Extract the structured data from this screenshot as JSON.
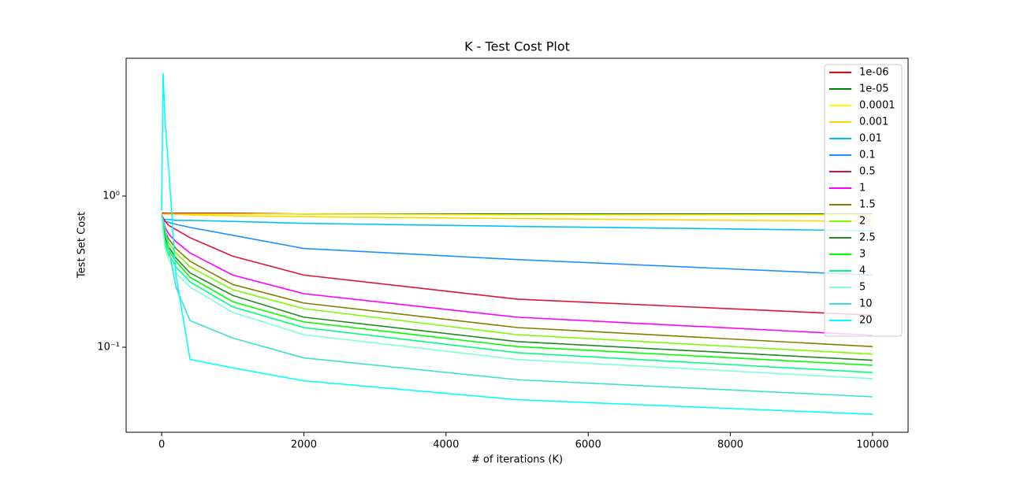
{
  "chart_data": {
    "type": "line",
    "title": "K - Test Cost Plot",
    "x_label": "# of iterations (K)",
    "y_label": "Test Set Cost",
    "yscale": "log",
    "legend": "upper right",
    "xlim": [
      -500,
      10500
    ],
    "ylim": [
      0.0274,
      8.15
    ],
    "xticks": [
      0,
      2000,
      4000,
      6000,
      8000,
      10000
    ],
    "yticks": [
      {
        "value": 0.1,
        "label": "10⁻¹"
      },
      {
        "value": 1,
        "label": "10⁰"
      }
    ],
    "x": [
      0,
      20,
      50,
      100,
      200,
      400,
      1000,
      2000,
      5000,
      10000
    ],
    "series": [
      {
        "name": "1e-06",
        "color": "#ff0000",
        "values": [
          0.77,
          0.77,
          0.77,
          0.77,
          0.77,
          0.77,
          0.77,
          0.76,
          0.76,
          0.76
        ]
      },
      {
        "name": "1e-05",
        "color": "#008000",
        "values": [
          0.76,
          0.76,
          0.76,
          0.76,
          0.76,
          0.76,
          0.76,
          0.76,
          0.76,
          0.76
        ]
      },
      {
        "name": "0.0001",
        "color": "#ffff00",
        "values": [
          0.76,
          0.76,
          0.76,
          0.76,
          0.76,
          0.76,
          0.76,
          0.76,
          0.75,
          0.75
        ]
      },
      {
        "name": "0.001",
        "color": "#ffd700",
        "values": [
          0.76,
          0.76,
          0.76,
          0.76,
          0.76,
          0.75,
          0.74,
          0.73,
          0.71,
          0.68
        ]
      },
      {
        "name": "0.01",
        "color": "#00bfff",
        "values": [
          0.72,
          0.71,
          0.7,
          0.7,
          0.69,
          0.69,
          0.68,
          0.66,
          0.63,
          0.59
        ]
      },
      {
        "name": "0.1",
        "color": "#1e90ff",
        "values": [
          0.72,
          0.7,
          0.68,
          0.67,
          0.65,
          0.62,
          0.55,
          0.45,
          0.38,
          0.3
        ]
      },
      {
        "name": "0.5",
        "color": "#dc143c",
        "values": [
          0.75,
          0.72,
          0.68,
          0.64,
          0.6,
          0.53,
          0.4,
          0.3,
          0.208,
          0.163
        ]
      },
      {
        "name": "1",
        "color": "#ff00ff",
        "values": [
          0.75,
          0.7,
          0.62,
          0.56,
          0.5,
          0.42,
          0.3,
          0.226,
          0.158,
          0.12
        ]
      },
      {
        "name": "1.5",
        "color": "#808000",
        "values": [
          0.75,
          0.68,
          0.58,
          0.52,
          0.45,
          0.37,
          0.26,
          0.196,
          0.135,
          0.101
        ]
      },
      {
        "name": "2",
        "color": "#7cfc00",
        "values": [
          0.75,
          0.66,
          0.55,
          0.49,
          0.42,
          0.34,
          0.24,
          0.18,
          0.121,
          0.09
        ]
      },
      {
        "name": "2.5",
        "color": "#228b22",
        "values": [
          0.75,
          0.64,
          0.53,
          0.46,
          0.39,
          0.31,
          0.22,
          0.158,
          0.109,
          0.082
        ]
      },
      {
        "name": "3",
        "color": "#00ff00",
        "values": [
          0.75,
          0.62,
          0.51,
          0.44,
          0.37,
          0.29,
          0.2,
          0.147,
          0.101,
          0.076
        ]
      },
      {
        "name": "4",
        "color": "#00ff7f",
        "values": [
          0.75,
          0.6,
          0.48,
          0.41,
          0.34,
          0.27,
          0.185,
          0.135,
          0.092,
          0.068
        ]
      },
      {
        "name": "5",
        "color": "#7fffd4",
        "values": [
          0.75,
          0.58,
          0.45,
          0.38,
          0.31,
          0.25,
          0.17,
          0.121,
          0.083,
          0.062
        ]
      },
      {
        "name": "10",
        "color": "#40e0d0",
        "values": [
          0.75,
          0.7,
          0.6,
          0.45,
          0.25,
          0.15,
          0.115,
          0.085,
          0.061,
          0.047
        ]
      },
      {
        "name": "20",
        "color": "#00ffff",
        "values": [
          0.8,
          6.5,
          3,
          1.5,
          0.3,
          0.083,
          0.073,
          0.06,
          0.045,
          0.036
        ]
      }
    ]
  }
}
